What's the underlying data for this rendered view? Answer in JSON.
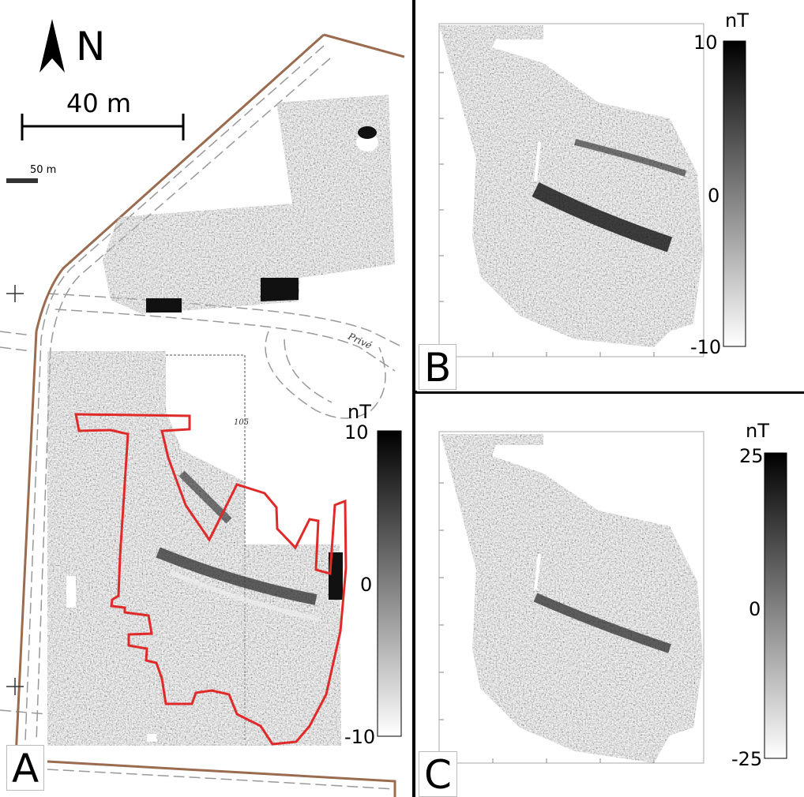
{
  "panel_a": {
    "letter": "A",
    "north_label": "N",
    "scale_bar_label": "40 m",
    "basemap_scale_label": "50  m",
    "road_label": "Privé",
    "parcel_label": "105",
    "colorbar": {
      "unit": "nT",
      "max_label": "10",
      "min_label": "-10",
      "zero_label": "0"
    }
  },
  "panel_b": {
    "letter": "B",
    "colorbar": {
      "unit": "nT",
      "max_label": "10",
      "zero_label": "0",
      "min_label": "-10"
    }
  },
  "panel_c": {
    "letter": "C",
    "colorbar": {
      "unit": "nT",
      "max_label": "25",
      "zero_label": "0",
      "min_label": "-25"
    }
  },
  "colors": {
    "property_boundary": "#9a6b4f",
    "outline": "#e02a2a",
    "divider": "#000000",
    "survey_gray": "#8f8f8f"
  }
}
